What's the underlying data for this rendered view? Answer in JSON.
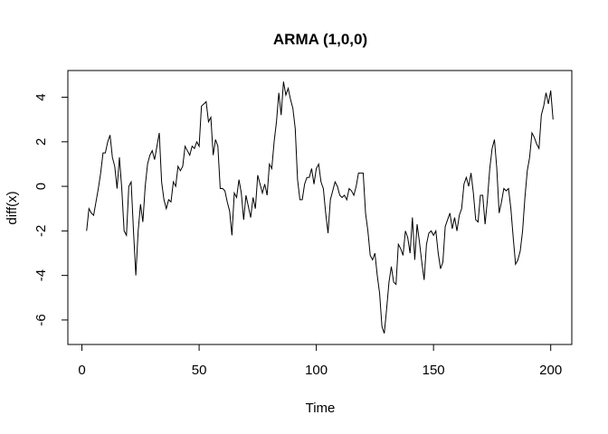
{
  "chart_data": {
    "type": "line",
    "title": "ARMA (1,0,0)",
    "x_label": "Time",
    "y_label": "diff(x)",
    "x": [
      2,
      3,
      4,
      5,
      6,
      7,
      8,
      9,
      10,
      11,
      12,
      13,
      14,
      15,
      16,
      17,
      18,
      19,
      20,
      21,
      22,
      23,
      24,
      25,
      26,
      27,
      28,
      29,
      30,
      31,
      32,
      33,
      34,
      35,
      36,
      37,
      38,
      39,
      40,
      41,
      42,
      43,
      44,
      45,
      46,
      47,
      48,
      49,
      50,
      51,
      52,
      53,
      54,
      55,
      56,
      57,
      58,
      59,
      60,
      61,
      62,
      63,
      64,
      65,
      66,
      67,
      68,
      69,
      70,
      71,
      72,
      73,
      74,
      75,
      76,
      77,
      78,
      79,
      80,
      81,
      82,
      83,
      84,
      85,
      86,
      87,
      88,
      89,
      90,
      91,
      92,
      93,
      94,
      95,
      96,
      97,
      98,
      99,
      100,
      101,
      102,
      103,
      104,
      105,
      106,
      107,
      108,
      109,
      110,
      111,
      112,
      113,
      114,
      115,
      116,
      117,
      118,
      119,
      120,
      121,
      122,
      123,
      124,
      125,
      126,
      127,
      128,
      129,
      130,
      131,
      132,
      133,
      134,
      135,
      136,
      137,
      138,
      139,
      140,
      141,
      142,
      143,
      144,
      145,
      146,
      147,
      148,
      149,
      150,
      151,
      152,
      153,
      154,
      155,
      156,
      157,
      158,
      159,
      160,
      161,
      162,
      163,
      164,
      165,
      166,
      167,
      168,
      169,
      170,
      171,
      172,
      173,
      174,
      175,
      176,
      177,
      178,
      179,
      180,
      181,
      182,
      183,
      184,
      185,
      186,
      187,
      188,
      189,
      190,
      191,
      192,
      193,
      194,
      195,
      196,
      197,
      198,
      199,
      200,
      201
    ],
    "series": [
      {
        "color": "#000000",
        "values": [
          -2.0,
          -1.0,
          -1.2,
          -1.3,
          -0.7,
          -0.1,
          0.6,
          1.5,
          1.5,
          2.0,
          2.3,
          1.3,
          0.9,
          -0.1,
          1.3,
          -0.1,
          -2.0,
          -2.2,
          0.0,
          0.2,
          -2.0,
          -4.0,
          -2.0,
          -0.8,
          -1.6,
          0.0,
          1.0,
          1.4,
          1.6,
          1.2,
          1.8,
          2.4,
          0.2,
          -0.6,
          -1.0,
          -0.6,
          -0.7,
          0.2,
          0.0,
          0.9,
          0.7,
          0.9,
          1.8,
          1.6,
          1.4,
          1.8,
          1.7,
          2.0,
          1.8,
          3.6,
          3.7,
          3.8,
          2.9,
          3.1,
          1.4,
          2.1,
          1.8,
          -0.1,
          -0.1,
          -0.2,
          -0.7,
          -1.1,
          -2.2,
          -0.3,
          -0.5,
          0.3,
          -0.3,
          -1.5,
          -0.4,
          -0.9,
          -1.4,
          -0.5,
          -1.0,
          0.5,
          0.1,
          -0.3,
          0.1,
          -0.4,
          1.0,
          0.8,
          2.0,
          2.9,
          4.2,
          3.2,
          4.7,
          4.1,
          4.4,
          3.9,
          3.5,
          2.6,
          0.3,
          -0.6,
          -0.6,
          0.1,
          0.4,
          0.4,
          0.8,
          0.1,
          0.8,
          1.0,
          0.2,
          -0.1,
          -1.2,
          -2.1,
          -0.6,
          -0.2,
          0.2,
          0.0,
          -0.4,
          -0.5,
          -0.4,
          -0.6,
          -0.1,
          -0.2,
          -0.4,
          0.0,
          0.6,
          0.6,
          0.6,
          -1.2,
          -2.0,
          -3.1,
          -3.3,
          -3.0,
          -4.0,
          -4.8,
          -6.3,
          -6.6,
          -5.5,
          -4.3,
          -3.6,
          -4.3,
          -4.4,
          -2.6,
          -2.8,
          -3.1,
          -2.0,
          -2.3,
          -3.0,
          -1.4,
          -3.3,
          -1.7,
          -2.5,
          -3.4,
          -4.2,
          -2.6,
          -2.1,
          -2.0,
          -2.2,
          -2.0,
          -3.0,
          -3.7,
          -3.4,
          -1.8,
          -1.5,
          -1.2,
          -1.9,
          -1.4,
          -2.0,
          -1.3,
          -1.0,
          0.1,
          0.4,
          0.0,
          0.6,
          -0.3,
          -1.5,
          -1.6,
          -0.4,
          -0.4,
          -1.7,
          -0.6,
          0.8,
          1.7,
          2.1,
          0.8,
          -1.2,
          -0.7,
          -0.1,
          -0.2,
          -0.1,
          -1.0,
          -2.3,
          -3.5,
          -3.3,
          -2.9,
          -2.0,
          -0.5,
          0.7,
          1.3,
          2.4,
          2.2,
          1.9,
          1.7,
          3.2,
          3.6,
          4.2,
          3.7,
          4.3,
          3.0
        ]
      }
    ],
    "xlim": [
      -6,
      209
    ],
    "ylim": [
      -7.1,
      5.2
    ],
    "xticks": [
      0,
      50,
      100,
      150,
      200
    ],
    "yticks": [
      -6,
      -4,
      -2,
      0,
      2,
      4
    ]
  }
}
